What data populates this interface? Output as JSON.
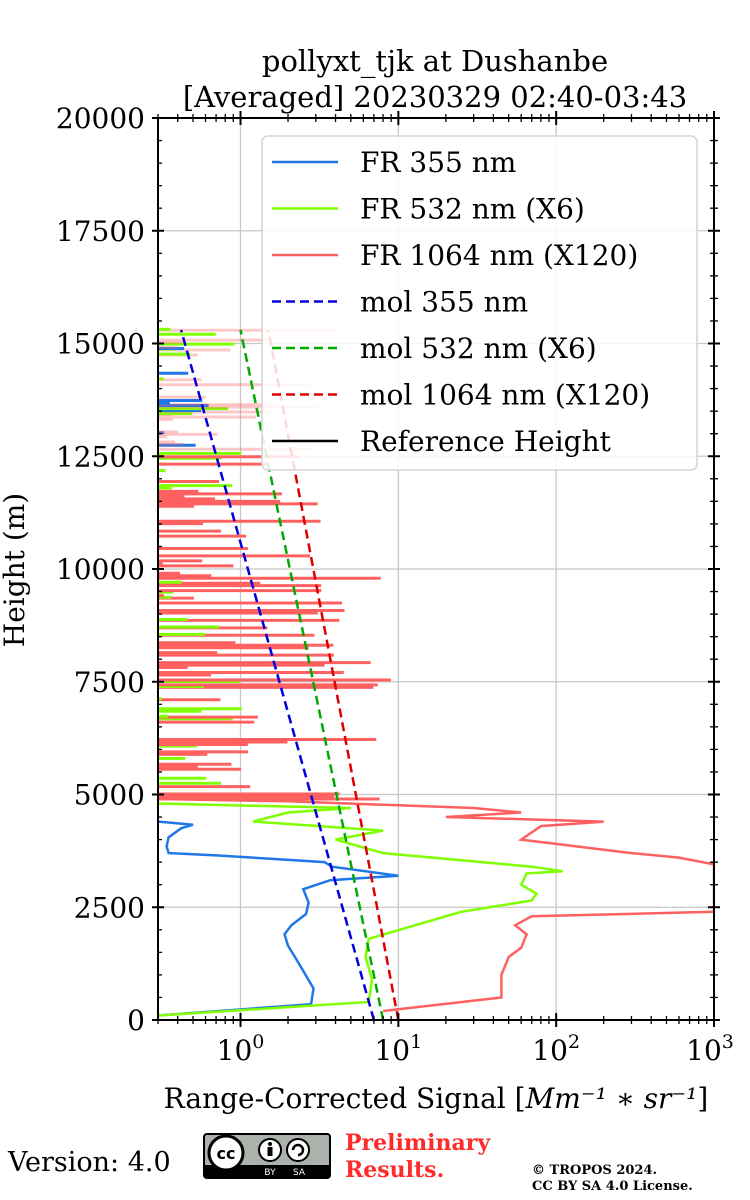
{
  "chart_data": {
    "type": "line",
    "title": "pollyxt_tjk at Dushanbe",
    "subtitle": "[Averaged] 20230329 02:40-03:43",
    "xlabel_text": "Range-Corrected Signal [",
    "xlabel_unit_html": "Mm⁻¹ ∗ sr⁻¹",
    "xlabel_close": "]",
    "ylabel": "Height (m)",
    "x_scale": "log",
    "xlim": [
      0.3,
      1000
    ],
    "ylim": [
      0,
      20000
    ],
    "x_ticks": [
      {
        "value": 1,
        "base": "10",
        "exp": "0"
      },
      {
        "value": 10,
        "base": "10",
        "exp": "1"
      },
      {
        "value": 100,
        "base": "10",
        "exp": "2"
      },
      {
        "value": 1000,
        "base": "10",
        "exp": "3"
      }
    ],
    "y_ticks": [
      0,
      2500,
      5000,
      7500,
      10000,
      12500,
      15000,
      17500,
      20000
    ],
    "grid": true,
    "legend_position": "top-right",
    "series": [
      {
        "name": "FR 355 nm",
        "color": "#1f77e8",
        "style": "solid",
        "x": [
          0.3,
          2.8,
          2.9,
          2.3,
          2.0,
          1.9,
          2.1,
          2.6,
          2.7,
          2.5,
          3.7,
          10,
          3.8,
          3.4,
          0.7,
          0.35,
          0.34,
          0.35,
          0.42,
          0.5,
          0.35,
          0.3
        ],
        "y": [
          100,
          350,
          700,
          1300,
          1650,
          1900,
          2100,
          2350,
          2600,
          2900,
          3100,
          3200,
          3400,
          3500,
          3650,
          3700,
          3850,
          4050,
          4250,
          4330,
          4380,
          4400
        ]
      },
      {
        "name": "FR 532 nm (X6)",
        "color": "#7fff00",
        "style": "solid",
        "x": [
          0.3,
          6.5,
          6.8,
          6.2,
          6.5,
          25,
          70,
          75,
          60,
          65,
          110,
          70,
          8,
          4,
          8,
          1.2,
          2,
          5,
          0.5,
          0.3
        ],
        "y": [
          100,
          400,
          900,
          1400,
          1800,
          2400,
          2650,
          2800,
          3000,
          3250,
          3300,
          3400,
          3700,
          4000,
          4200,
          4400,
          4600,
          4700,
          4780,
          4800
        ]
      },
      {
        "name": "FR 1064 nm (X120)",
        "color": "#ff6060",
        "style": "solid",
        "x": [
          8,
          45,
          45,
          50,
          60,
          65,
          55,
          70,
          1000,
          1000,
          600,
          300,
          60,
          80,
          200,
          20,
          60,
          30,
          2,
          0.3
        ],
        "y": [
          200,
          500,
          1000,
          1400,
          1600,
          1900,
          2100,
          2300,
          2400,
          3450,
          3600,
          3700,
          4000,
          4300,
          4400,
          4500,
          4600,
          4700,
          4850,
          4900
        ]
      },
      {
        "name": "mol 355 nm",
        "color": "#0000dd",
        "style": "dashed",
        "x": [
          7.0,
          0.42
        ],
        "y": [
          0,
          15300
        ]
      },
      {
        "name": "mol 532 nm (X6)",
        "color": "#00aa00",
        "style": "dashed",
        "x": [
          8.0,
          1.0
        ],
        "y": [
          0,
          15300
        ]
      },
      {
        "name": "mol 1064 nm (X120)",
        "color": "#dd0000",
        "style": "dashed",
        "x": [
          10.0,
          1.5
        ],
        "y": [
          0,
          15300
        ]
      },
      {
        "name": "Reference Height",
        "color": "#000000",
        "style": "solid",
        "x": [],
        "y": []
      }
    ],
    "noisy_region": {
      "y_min": 4900,
      "y_max": 15300
    }
  },
  "footer": {
    "version": "Version: 4.0",
    "preliminary_line1": "Preliminary",
    "preliminary_line2": "Results.",
    "copyright_line1": "© TROPOS 2024.",
    "copyright_line2": "CC BY SA 4.0 License.",
    "cc_badge_cc": "cc",
    "cc_badge_by": "BY",
    "cc_badge_sa": "SA"
  }
}
